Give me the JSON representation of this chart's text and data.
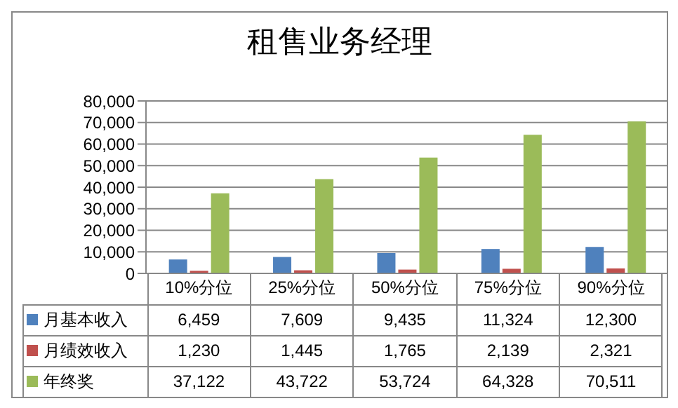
{
  "chart_data": {
    "type": "bar",
    "title": "租售业务经理",
    "categories": [
      "10%分位",
      "25%分位",
      "50%分位",
      "75%分位",
      "90%分位"
    ],
    "series": [
      {
        "name": "月基本收入",
        "color": "#4f81bd",
        "values": [
          6459,
          7609,
          9435,
          11324,
          12300
        ],
        "value_labels": [
          "6,459",
          "7,609",
          "9,435",
          "11,324",
          "12,300"
        ]
      },
      {
        "name": "月绩效收入",
        "color": "#c0504d",
        "values": [
          1230,
          1445,
          1765,
          2139,
          2321
        ],
        "value_labels": [
          "1,230",
          "1,445",
          "1,765",
          "2,139",
          "2,321"
        ]
      },
      {
        "name": "年终奖",
        "color": "#9bbb59",
        "values": [
          37122,
          43722,
          53724,
          64328,
          70511
        ],
        "value_labels": [
          "37,122",
          "43,722",
          "53,724",
          "64,328",
          "70,511"
        ]
      }
    ],
    "ylim": [
      0,
      80000
    ],
    "yticks": [
      {
        "value": 0,
        "label": "0"
      },
      {
        "value": 10000,
        "label": "10,000"
      },
      {
        "value": 20000,
        "label": "20,000"
      },
      {
        "value": 30000,
        "label": "30,000"
      },
      {
        "value": 40000,
        "label": "40,000"
      },
      {
        "value": 50000,
        "label": "50,000"
      },
      {
        "value": 60000,
        "label": "60,000"
      },
      {
        "value": 70000,
        "label": "70,000"
      },
      {
        "value": 80000,
        "label": "80,000"
      }
    ],
    "grid": "y",
    "legend": "bottom"
  }
}
